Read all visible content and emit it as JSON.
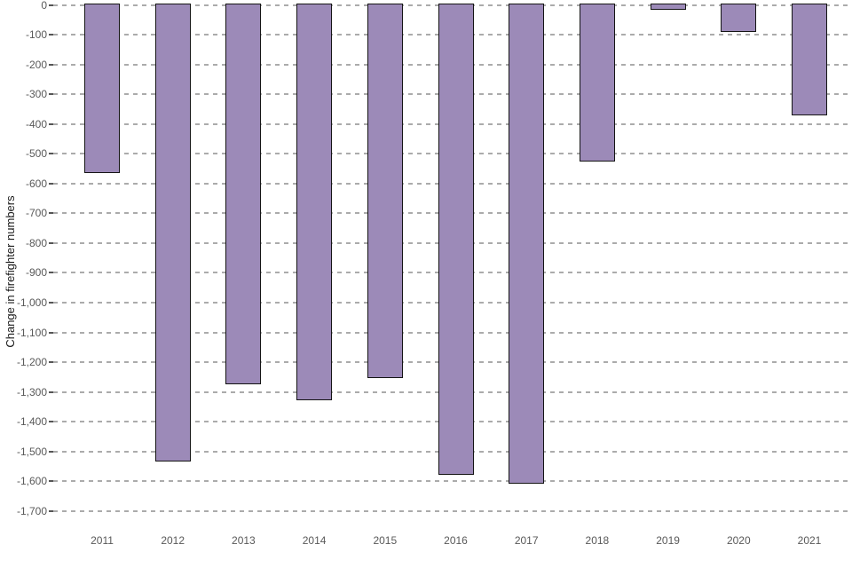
{
  "chart_data": {
    "type": "bar",
    "title": "",
    "xlabel": "",
    "ylabel": "Change in firefighter numbers",
    "categories": [
      "2011",
      "2012",
      "2013",
      "2014",
      "2015",
      "2016",
      "2017",
      "2018",
      "2019",
      "2020",
      "2021"
    ],
    "values": [
      -560,
      -1530,
      -1270,
      -1325,
      -1250,
      -1575,
      -1605,
      -520,
      -10,
      -85,
      -365
    ],
    "ylim": [
      -1700,
      0
    ],
    "yticks": [
      0,
      -100,
      -200,
      -300,
      -400,
      -500,
      -600,
      -700,
      -800,
      -900,
      -1000,
      -1100,
      -1200,
      -1300,
      -1400,
      -1500,
      -1600,
      -1700
    ],
    "ytick_labels": [
      "0",
      "-100",
      "-200",
      "-300",
      "-400",
      "-500",
      "-600",
      "-700",
      "-800",
      "-900",
      "-1,000",
      "-1,100",
      "-1,200",
      "-1,300",
      "-1,400",
      "-1,500",
      "-1,600",
      "-1,700"
    ],
    "grid": "horizontal-dashed",
    "legend": "none"
  },
  "style": {
    "background": "#ffffff",
    "bar_fill": "#9c8ab8",
    "bar_border": "#141414",
    "grid_color": "#ababab",
    "tick_label_color": "#595959",
    "axis_title_color": "#1a1a1a"
  }
}
